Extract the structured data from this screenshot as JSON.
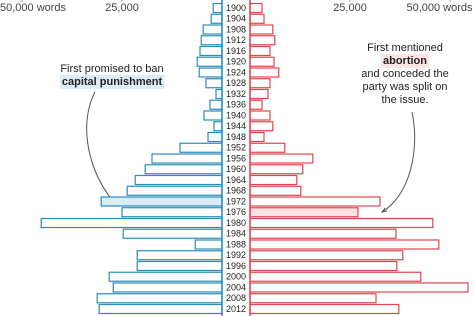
{
  "chart_data": {
    "type": "butterfly",
    "categories": [
      "1900",
      "1904",
      "1908",
      "1912",
      "1916",
      "1920",
      "1924",
      "1928",
      "1932",
      "1936",
      "1940",
      "1944",
      "1948",
      "1952",
      "1956",
      "1960",
      "1964",
      "1968",
      "1972",
      "1976",
      "1980",
      "1984",
      "1988",
      "1992",
      "1996",
      "2000",
      "2004",
      "2008",
      "2012"
    ],
    "xlim": [
      0,
      55000
    ],
    "xticks": [
      {
        "value": 50000,
        "label": "50,000 words"
      },
      {
        "value": 25000,
        "label": "25,000"
      }
    ],
    "series": [
      {
        "side": "left",
        "color": "#2a8ab8",
        "highlight_color": "#dcecf7",
        "highlight": 18,
        "values": [
          2200,
          2700,
          4700,
          5200,
          5500,
          6200,
          5700,
          4000,
          1500,
          3000,
          4500,
          2000,
          3500,
          10500,
          17500,
          19200,
          21700,
          23700,
          30200,
          25000,
          45200,
          24700,
          6700,
          21200,
          21200,
          28200,
          27200,
          31200,
          30700
        ]
      },
      {
        "side": "right",
        "color": "#e0454f",
        "highlight_color": "#fde3e5",
        "highlight": 19,
        "values": [
          3000,
          3500,
          5700,
          6200,
          5000,
          6000,
          7200,
          5000,
          4500,
          3000,
          5000,
          5700,
          3500,
          8700,
          15700,
          13200,
          11700,
          12700,
          32500,
          27000,
          45700,
          36500,
          47200,
          38200,
          36700,
          42700,
          54500,
          31500,
          37200
        ]
      }
    ],
    "annotations": [
      {
        "lines": [
          "First promised to ban",
          "capital punishment"
        ],
        "emphasis": 1
      },
      {
        "lines": [
          "First mentioned",
          "abortion",
          "and conceded the",
          "party was split on",
          "the issue."
        ],
        "emphasis": 1
      }
    ]
  }
}
